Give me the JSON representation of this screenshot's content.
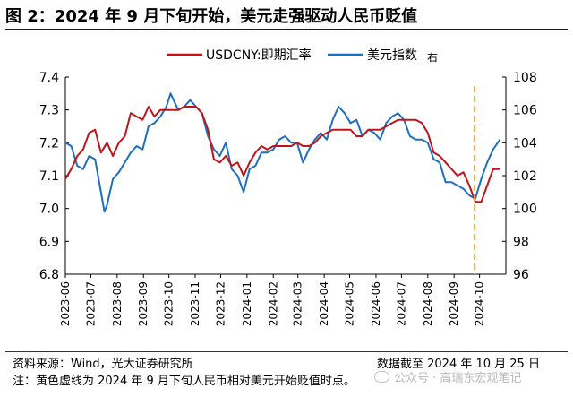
{
  "header": {
    "title": "图 2：2024 年 9 月下旬开始，美元走强驱动人民币贬值"
  },
  "chart_data": {
    "type": "line",
    "title": "图 2：2024 年 9 月下旬开始，美元走强驱动人民币贬值",
    "legend": {
      "placement": "top-center",
      "items": [
        {
          "label": "USDCNY:即期汇率",
          "color": "#c0141b"
        },
        {
          "label": "美元指数",
          "color": "#1f6fbf"
        },
        {
          "label": "右",
          "color": ""
        }
      ]
    },
    "x_ticks": [
      "2023-06",
      "2023-07",
      "2023-08",
      "2023-09",
      "2023-10",
      "2023-11",
      "2023-12",
      "2024-01",
      "2024-02",
      "2024-03",
      "2024-04",
      "2024-05",
      "2024-06",
      "2024-07",
      "2024-08",
      "2024-09",
      "2024-10"
    ],
    "y_left": {
      "ticks": [
        "7.4",
        "7.3",
        "7.2",
        "7.1",
        "7.0",
        "6.9",
        "6.8"
      ],
      "lim": [
        6.8,
        7.4
      ]
    },
    "y_right": {
      "ticks": [
        "108",
        "106",
        "104",
        "102",
        "100",
        "98",
        "96"
      ],
      "lim": [
        96,
        108
      ]
    },
    "series": [
      {
        "name": "USDCNY:即期汇率",
        "axis": "left",
        "color": "#c0141b",
        "points": [
          [
            "2023-06-01",
            7.09
          ],
          [
            "2023-06-08",
            7.12
          ],
          [
            "2023-06-15",
            7.16
          ],
          [
            "2023-06-22",
            7.18
          ],
          [
            "2023-06-29",
            7.23
          ],
          [
            "2023-07-06",
            7.24
          ],
          [
            "2023-07-13",
            7.17
          ],
          [
            "2023-07-20",
            7.2
          ],
          [
            "2023-07-27",
            7.16
          ],
          [
            "2023-08-03",
            7.2
          ],
          [
            "2023-08-10",
            7.22
          ],
          [
            "2023-08-17",
            7.29
          ],
          [
            "2023-08-24",
            7.28
          ],
          [
            "2023-08-31",
            7.27
          ],
          [
            "2023-09-07",
            7.31
          ],
          [
            "2023-09-14",
            7.28
          ],
          [
            "2023-09-21",
            7.3
          ],
          [
            "2023-09-28",
            7.3
          ],
          [
            "2023-10-05",
            7.3
          ],
          [
            "2023-10-12",
            7.3
          ],
          [
            "2023-10-19",
            7.31
          ],
          [
            "2023-10-26",
            7.31
          ],
          [
            "2023-11-02",
            7.31
          ],
          [
            "2023-11-09",
            7.29
          ],
          [
            "2023-11-16",
            7.24
          ],
          [
            "2023-11-23",
            7.15
          ],
          [
            "2023-11-30",
            7.14
          ],
          [
            "2023-12-07",
            7.16
          ],
          [
            "2023-12-14",
            7.13
          ],
          [
            "2023-12-21",
            7.14
          ],
          [
            "2023-12-28",
            7.1
          ],
          [
            "2024-01-04",
            7.14
          ],
          [
            "2024-01-11",
            7.17
          ],
          [
            "2024-01-18",
            7.19
          ],
          [
            "2024-01-25",
            7.18
          ],
          [
            "2024-02-01",
            7.19
          ],
          [
            "2024-02-08",
            7.19
          ],
          [
            "2024-02-15",
            7.19
          ],
          [
            "2024-02-22",
            7.19
          ],
          [
            "2024-02-29",
            7.2
          ],
          [
            "2024-03-07",
            7.19
          ],
          [
            "2024-03-14",
            7.19
          ],
          [
            "2024-03-21",
            7.2
          ],
          [
            "2024-03-28",
            7.22
          ],
          [
            "2024-04-04",
            7.23
          ],
          [
            "2024-04-11",
            7.24
          ],
          [
            "2024-04-18",
            7.24
          ],
          [
            "2024-04-25",
            7.24
          ],
          [
            "2024-05-02",
            7.24
          ],
          [
            "2024-05-09",
            7.22
          ],
          [
            "2024-05-16",
            7.22
          ],
          [
            "2024-05-23",
            7.24
          ],
          [
            "2024-05-30",
            7.24
          ],
          [
            "2024-06-06",
            7.24
          ],
          [
            "2024-06-13",
            7.25
          ],
          [
            "2024-06-20",
            7.26
          ],
          [
            "2024-06-27",
            7.27
          ],
          [
            "2024-07-04",
            7.27
          ],
          [
            "2024-07-11",
            7.27
          ],
          [
            "2024-07-18",
            7.27
          ],
          [
            "2024-07-25",
            7.26
          ],
          [
            "2024-08-01",
            7.23
          ],
          [
            "2024-08-08",
            7.17
          ],
          [
            "2024-08-15",
            7.16
          ],
          [
            "2024-08-22",
            7.14
          ],
          [
            "2024-08-29",
            7.12
          ],
          [
            "2024-09-05",
            7.1
          ],
          [
            "2024-09-12",
            7.11
          ],
          [
            "2024-09-19",
            7.07
          ],
          [
            "2024-09-26",
            7.02
          ],
          [
            "2024-10-03",
            7.02
          ],
          [
            "2024-10-10",
            7.07
          ],
          [
            "2024-10-17",
            7.12
          ],
          [
            "2024-10-25",
            7.12
          ]
        ]
      },
      {
        "name": "美元指数",
        "axis": "right",
        "color": "#1f6fbf",
        "points": [
          [
            "2023-06-01",
            104.0
          ],
          [
            "2023-06-08",
            103.8
          ],
          [
            "2023-06-15",
            102.6
          ],
          [
            "2023-06-22",
            102.4
          ],
          [
            "2023-06-29",
            103.2
          ],
          [
            "2023-07-06",
            103.0
          ],
          [
            "2023-07-13",
            101.0
          ],
          [
            "2023-07-17",
            99.8
          ],
          [
            "2023-07-20",
            100.2
          ],
          [
            "2023-07-27",
            101.8
          ],
          [
            "2023-08-03",
            102.2
          ],
          [
            "2023-08-10",
            102.8
          ],
          [
            "2023-08-17",
            103.4
          ],
          [
            "2023-08-24",
            103.8
          ],
          [
            "2023-08-31",
            103.6
          ],
          [
            "2023-09-07",
            105.0
          ],
          [
            "2023-09-14",
            105.2
          ],
          [
            "2023-09-21",
            105.6
          ],
          [
            "2023-09-28",
            106.2
          ],
          [
            "2023-10-03",
            107.0
          ],
          [
            "2023-10-12",
            106.0
          ],
          [
            "2023-10-19",
            106.2
          ],
          [
            "2023-10-26",
            106.6
          ],
          [
            "2023-11-02",
            106.2
          ],
          [
            "2023-11-09",
            105.8
          ],
          [
            "2023-11-16",
            104.4
          ],
          [
            "2023-11-23",
            103.6
          ],
          [
            "2023-11-30",
            103.2
          ],
          [
            "2023-12-07",
            104.0
          ],
          [
            "2023-12-14",
            102.4
          ],
          [
            "2023-12-21",
            102.0
          ],
          [
            "2023-12-28",
            101.0
          ],
          [
            "2024-01-04",
            102.4
          ],
          [
            "2024-01-11",
            102.6
          ],
          [
            "2024-01-18",
            103.4
          ],
          [
            "2024-01-25",
            103.4
          ],
          [
            "2024-02-01",
            103.6
          ],
          [
            "2024-02-08",
            104.2
          ],
          [
            "2024-02-15",
            104.4
          ],
          [
            "2024-02-22",
            104.0
          ],
          [
            "2024-02-29",
            104.0
          ],
          [
            "2024-03-07",
            102.8
          ],
          [
            "2024-03-14",
            103.6
          ],
          [
            "2024-03-21",
            104.2
          ],
          [
            "2024-03-28",
            104.6
          ],
          [
            "2024-04-04",
            104.2
          ],
          [
            "2024-04-11",
            105.4
          ],
          [
            "2024-04-18",
            106.2
          ],
          [
            "2024-04-25",
            105.8
          ],
          [
            "2024-05-02",
            105.2
          ],
          [
            "2024-05-09",
            105.4
          ],
          [
            "2024-05-16",
            104.4
          ],
          [
            "2024-05-23",
            104.8
          ],
          [
            "2024-05-30",
            104.6
          ],
          [
            "2024-06-06",
            104.2
          ],
          [
            "2024-06-13",
            105.2
          ],
          [
            "2024-06-20",
            105.6
          ],
          [
            "2024-06-27",
            105.8
          ],
          [
            "2024-07-04",
            105.4
          ],
          [
            "2024-07-11",
            104.4
          ],
          [
            "2024-07-18",
            104.2
          ],
          [
            "2024-07-25",
            104.2
          ],
          [
            "2024-08-01",
            104.0
          ],
          [
            "2024-08-08",
            103.0
          ],
          [
            "2024-08-15",
            102.8
          ],
          [
            "2024-08-22",
            101.6
          ],
          [
            "2024-08-29",
            101.6
          ],
          [
            "2024-09-05",
            101.4
          ],
          [
            "2024-09-12",
            101.2
          ],
          [
            "2024-09-19",
            100.8
          ],
          [
            "2024-09-26",
            100.6
          ],
          [
            "2024-10-03",
            101.8
          ],
          [
            "2024-10-10",
            102.8
          ],
          [
            "2024-10-17",
            103.6
          ],
          [
            "2024-10-25",
            104.2
          ]
        ]
      }
    ],
    "marker_line": {
      "date": "2024-09-25",
      "color": "#f4b328",
      "style": "dashed"
    }
  },
  "footer": {
    "source": "资料来源：Wind，光大证券研究所",
    "date_note": "数据截至 2024 年 10 月 25 日",
    "note": "注：黄色虚线为 2024 年 9 月下旬人民币相对美元开始贬值时点。",
    "watermark": "公众号 · 高瑞东宏观笔记"
  }
}
